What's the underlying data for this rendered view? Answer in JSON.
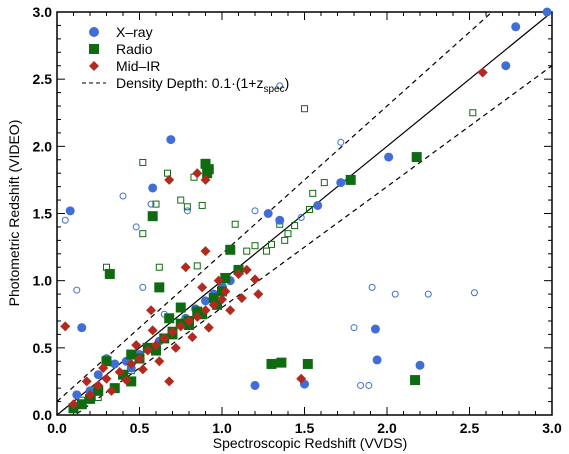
{
  "chart_data": {
    "type": "scatter",
    "xlabel": "Spectroscopic Redshift (VVDS)",
    "ylabel": "Photometric Redshift (VIDEO)",
    "xlim": [
      0,
      3.0
    ],
    "ylim": [
      0,
      3.0
    ],
    "x_ticks": [
      "0.0",
      "0.5",
      "1.0",
      "1.5",
      "2.0",
      "2.5",
      "3.0"
    ],
    "y_ticks": [
      "0.0",
      "0.5",
      "1.0",
      "1.5",
      "2.0",
      "2.5",
      "3.0"
    ],
    "legend": {
      "placement": "top-left",
      "entries": [
        {
          "label": "X–ray",
          "marker": "circle",
          "color": "#3f6fd6"
        },
        {
          "label": "Radio",
          "marker": "square",
          "color": "#0f6b10"
        },
        {
          "label": "Mid–IR",
          "marker": "diamond",
          "color": "#b22a1f"
        },
        {
          "label": "Density Depth: 0.1·(1+z",
          "label_sub": "spec",
          "label_tail": ")",
          "marker": "dashed-line",
          "color": "#000000"
        }
      ]
    },
    "reference_lines": {
      "one_to_one": "solid",
      "bounds": "dashed",
      "bound_fraction": 0.1
    },
    "series": [
      {
        "name": "X–ray",
        "marker": "circle",
        "color": "#3f6fd6",
        "filled": [
          [
            0.08,
            1.52
          ],
          [
            0.15,
            0.65
          ],
          [
            0.69,
            2.05
          ],
          [
            0.58,
            1.69
          ],
          [
            1.2,
            0.22
          ],
          [
            1.35,
            1.45
          ],
          [
            1.5,
            0.23
          ],
          [
            1.58,
            1.56
          ],
          [
            1.72,
            1.73
          ],
          [
            1.93,
            0.64
          ],
          [
            1.94,
            0.41
          ],
          [
            2.01,
            1.92
          ],
          [
            2.2,
            0.37
          ],
          [
            2.72,
            2.6
          ],
          [
            2.78,
            2.89
          ],
          [
            2.97,
            3.0
          ],
          [
            0.3,
            0.42
          ],
          [
            0.35,
            0.38
          ],
          [
            0.42,
            0.4
          ],
          [
            0.5,
            0.45
          ],
          [
            0.62,
            0.55
          ],
          [
            0.7,
            0.62
          ],
          [
            0.78,
            0.72
          ],
          [
            0.84,
            0.79
          ],
          [
            0.9,
            0.85
          ],
          [
            0.95,
            0.9
          ],
          [
            1.0,
            0.96
          ],
          [
            1.05,
            1.0
          ],
          [
            1.28,
            1.5
          ],
          [
            1.3,
            0.38
          ],
          [
            0.45,
            0.35
          ],
          [
            0.55,
            0.5
          ],
          [
            0.25,
            0.3
          ],
          [
            0.12,
            0.15
          ],
          [
            0.2,
            0.18
          ]
        ],
        "open": [
          [
            0.05,
            1.45
          ],
          [
            0.12,
            0.93
          ],
          [
            0.4,
            1.63
          ],
          [
            0.48,
            1.4
          ],
          [
            0.52,
            0.95
          ],
          [
            0.57,
            1.57
          ],
          [
            0.79,
            1.52
          ],
          [
            1.2,
            1.52
          ],
          [
            1.35,
            2.45
          ],
          [
            1.48,
            1.47
          ],
          [
            1.8,
            0.65
          ],
          [
            1.84,
            0.22
          ],
          [
            1.89,
            0.22
          ],
          [
            1.91,
            0.95
          ],
          [
            2.05,
            0.9
          ],
          [
            2.25,
            0.9
          ],
          [
            2.53,
            0.91
          ],
          [
            1.72,
            2.03
          ],
          [
            0.65,
            0.75
          ]
        ]
      },
      {
        "name": "Radio",
        "marker": "square",
        "color": "#0f6b10",
        "filled": [
          [
            0.58,
            1.48
          ],
          [
            0.62,
            0.95
          ],
          [
            0.7,
            0.62
          ],
          [
            0.8,
            0.7
          ],
          [
            0.9,
            1.87
          ],
          [
            0.91,
            1.8
          ],
          [
            0.92,
            1.83
          ],
          [
            1.05,
            1.23
          ],
          [
            1.1,
            1.08
          ],
          [
            1.3,
            0.38
          ],
          [
            1.36,
            0.39
          ],
          [
            1.52,
            0.38
          ],
          [
            1.78,
            1.75
          ],
          [
            2.18,
            1.92
          ],
          [
            2.17,
            0.26
          ],
          [
            0.32,
            1.05
          ],
          [
            0.3,
            0.4
          ],
          [
            0.45,
            0.45
          ],
          [
            0.55,
            0.5
          ],
          [
            0.65,
            0.57
          ],
          [
            0.75,
            0.68
          ],
          [
            0.85,
            0.77
          ],
          [
            0.95,
            0.87
          ],
          [
            1.0,
            0.92
          ],
          [
            0.4,
            0.3
          ],
          [
            0.5,
            0.42
          ],
          [
            0.6,
            0.48
          ],
          [
            0.7,
            0.6
          ],
          [
            0.8,
            0.67
          ],
          [
            0.15,
            0.08
          ],
          [
            0.2,
            0.12
          ],
          [
            0.25,
            0.18
          ],
          [
            0.35,
            0.2
          ],
          [
            0.45,
            0.25
          ],
          [
            1.02,
            1.02
          ],
          [
            0.75,
            0.8
          ],
          [
            0.88,
            0.75
          ],
          [
            0.97,
            0.82
          ],
          [
            0.68,
            0.72
          ],
          [
            0.1,
            0.05
          ]
        ],
        "open": [
          [
            0.3,
            1.1
          ],
          [
            0.52,
            1.35
          ],
          [
            0.52,
            1.88
          ],
          [
            0.6,
            1.57
          ],
          [
            0.62,
            1.1
          ],
          [
            0.67,
            1.8
          ],
          [
            0.75,
            1.6
          ],
          [
            0.79,
            1.55
          ],
          [
            0.83,
            1.77
          ],
          [
            0.88,
            1.56
          ],
          [
            1.08,
            1.42
          ],
          [
            1.2,
            1.26
          ],
          [
            1.27,
            1.22
          ],
          [
            1.3,
            1.27
          ],
          [
            1.35,
            1.42
          ],
          [
            1.38,
            1.3
          ],
          [
            1.4,
            1.35
          ],
          [
            1.44,
            1.41
          ],
          [
            1.5,
            2.28
          ],
          [
            1.53,
            1.53
          ],
          [
            1.55,
            1.65
          ],
          [
            1.62,
            1.73
          ],
          [
            2.52,
            2.25
          ],
          [
            0.15,
            0.11
          ],
          [
            0.25,
            0.13
          ],
          [
            0.45,
            0.33
          ],
          [
            0.85,
            1.11
          ],
          [
            1.15,
            1.22
          ]
        ]
      },
      {
        "name": "Mid–IR",
        "marker": "diamond",
        "color": "#b22a1f",
        "filled": [
          [
            0.05,
            0.66
          ],
          [
            0.57,
            0.78
          ],
          [
            0.68,
            1.75
          ],
          [
            0.85,
            1.8
          ],
          [
            0.9,
            1.75
          ],
          [
            0.78,
            1.1
          ],
          [
            0.9,
            1.22
          ],
          [
            0.98,
            1.0
          ],
          [
            1.02,
            0.92
          ],
          [
            1.1,
            1.05
          ],
          [
            1.15,
            1.08
          ],
          [
            1.2,
            1.01
          ],
          [
            1.22,
            0.9
          ],
          [
            1.48,
            0.27
          ],
          [
            2.58,
            2.55
          ],
          [
            0.1,
            0.08
          ],
          [
            0.2,
            0.15
          ],
          [
            0.25,
            0.22
          ],
          [
            0.3,
            0.27
          ],
          [
            0.38,
            0.32
          ],
          [
            0.45,
            0.38
          ],
          [
            0.5,
            0.42
          ],
          [
            0.55,
            0.48
          ],
          [
            0.6,
            0.52
          ],
          [
            0.65,
            0.57
          ],
          [
            0.7,
            0.62
          ],
          [
            0.75,
            0.66
          ],
          [
            0.8,
            0.7
          ],
          [
            0.85,
            0.73
          ],
          [
            0.9,
            0.78
          ],
          [
            0.95,
            0.82
          ],
          [
            1.0,
            0.86
          ],
          [
            0.68,
            0.25
          ],
          [
            0.33,
            0.18
          ],
          [
            0.42,
            0.26
          ],
          [
            0.52,
            0.34
          ],
          [
            0.62,
            0.4
          ],
          [
            0.72,
            0.5
          ],
          [
            0.82,
            0.58
          ],
          [
            0.92,
            0.65
          ],
          [
            1.05,
            0.78
          ],
          [
            1.12,
            0.87
          ],
          [
            0.18,
            0.25
          ],
          [
            0.28,
            0.35
          ],
          [
            0.48,
            0.52
          ],
          [
            0.58,
            0.63
          ],
          [
            0.88,
            0.95
          ]
        ]
      }
    ]
  }
}
